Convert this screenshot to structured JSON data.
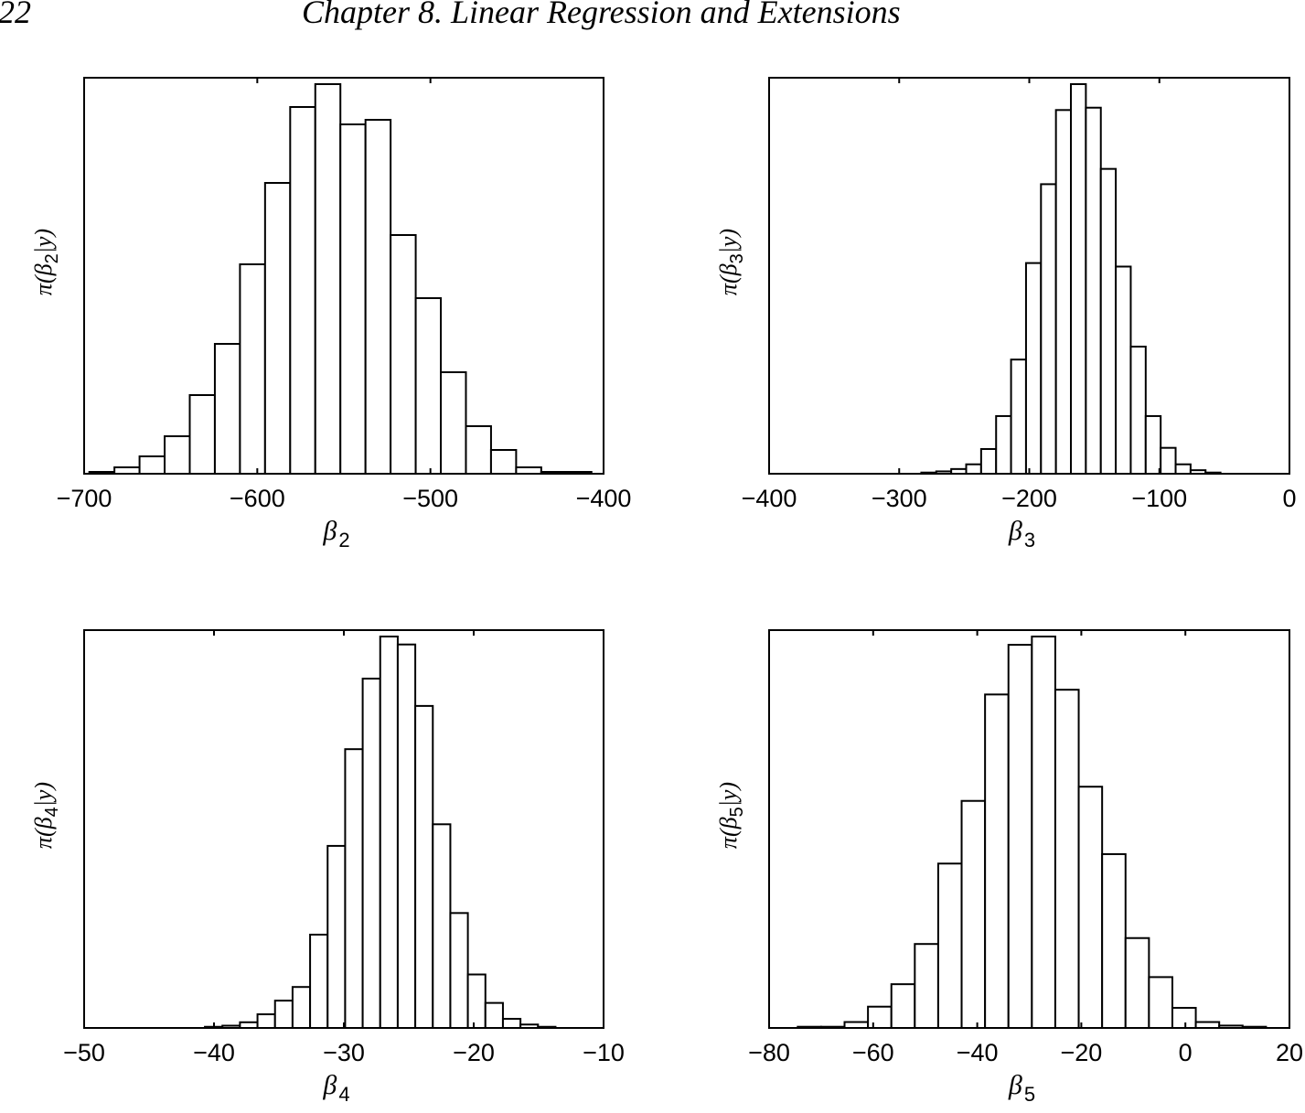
{
  "header": {
    "page_number": "22",
    "running_title": "Chapter 8. Linear Regression and Extensions"
  },
  "chart_data": [
    {
      "type": "bar",
      "subtype": "histogram",
      "id": "beta2",
      "title": "",
      "xlabel": "β2",
      "ylabel": "π(β2|y)",
      "xlim": [
        -700,
        -400
      ],
      "xticks": [
        -700,
        -600,
        -500,
        -400
      ],
      "xtick_labels": [
        "−700",
        "−600",
        "−500",
        "−400"
      ],
      "bin_start": -697,
      "bin_width": 14.5,
      "values": [
        2,
        7,
        19,
        41,
        86,
        142,
        229,
        318,
        401,
        426,
        382,
        387,
        261,
        192,
        111,
        52,
        26,
        7,
        2,
        2
      ],
      "grid": false,
      "yticks": []
    },
    {
      "type": "bar",
      "subtype": "histogram",
      "id": "beta3",
      "title": "",
      "xlabel": "β3",
      "ylabel": "π(β3|y)",
      "xlim": [
        -400,
        0
      ],
      "xticks": [
        -400,
        -300,
        -200,
        -100,
        0
      ],
      "xtick_labels": [
        "−400",
        "−300",
        "−200",
        "−100",
        "0"
      ],
      "bin_start": -283,
      "bin_width": 11.5,
      "values": [
        1,
        2,
        4,
        8,
        21,
        49,
        97,
        179,
        246,
        309,
        331,
        311,
        259,
        176,
        108,
        49,
        22,
        8,
        3,
        1
      ],
      "grid": false,
      "yticks": []
    },
    {
      "type": "bar",
      "subtype": "histogram",
      "id": "beta4",
      "title": "",
      "xlabel": "β4",
      "ylabel": "π(β4|y)",
      "xlim": [
        -50,
        -10
      ],
      "xticks": [
        -50,
        -40,
        -30,
        -20,
        -10
      ],
      "xtick_labels": [
        "−50",
        "−40",
        "−30",
        "−20",
        "−10"
      ],
      "bin_start": -40.7,
      "bin_width": 1.35,
      "values": [
        1,
        2,
        5,
        12,
        24,
        36,
        82,
        160,
        245,
        307,
        344,
        337,
        283,
        179,
        101,
        47,
        22,
        8,
        3,
        1
      ],
      "grid": false,
      "yticks": []
    },
    {
      "type": "bar",
      "subtype": "histogram",
      "id": "beta5",
      "title": "",
      "xlabel": "β5",
      "ylabel": "π(β5|y)",
      "xlim": [
        -80,
        20
      ],
      "xticks": [
        -80,
        -60,
        -40,
        -20,
        0,
        20
      ],
      "xtick_labels": [
        "−80",
        "−60",
        "−40",
        "−20",
        "0",
        "20"
      ],
      "bin_start": -74.5,
      "bin_width": 4.5,
      "values": [
        1,
        1,
        5,
        18,
        37,
        71,
        139,
        192,
        282,
        324,
        331,
        286,
        204,
        147,
        76,
        43,
        17,
        5,
        2,
        1
      ],
      "grid": false,
      "yticks": []
    }
  ],
  "panels": [
    {
      "xlabel_sym": "β",
      "xlabel_sub": "2",
      "ylabel": "π(β2|y)",
      "ylabel_pre": "π(β",
      "ylabel_sub": "2",
      "ylabel_post": "|y)"
    },
    {
      "xlabel_sym": "β",
      "xlabel_sub": "3",
      "ylabel": "π(β3|y)",
      "ylabel_pre": "π(β",
      "ylabel_sub": "3",
      "ylabel_post": "|y)"
    },
    {
      "xlabel_sym": "β",
      "xlabel_sub": "4",
      "ylabel": "π(β4|y)",
      "ylabel_pre": "π(β",
      "ylabel_sub": "4",
      "ylabel_post": "|y)"
    },
    {
      "xlabel_sym": "β",
      "xlabel_sub": "5",
      "ylabel": "π(β5|y)",
      "ylabel_pre": "π(β",
      "ylabel_sub": "5",
      "ylabel_post": "|y)"
    }
  ],
  "colors": {
    "bar_fill": "#ffffff",
    "bar_stroke": "#000000",
    "axis": "#000000"
  }
}
